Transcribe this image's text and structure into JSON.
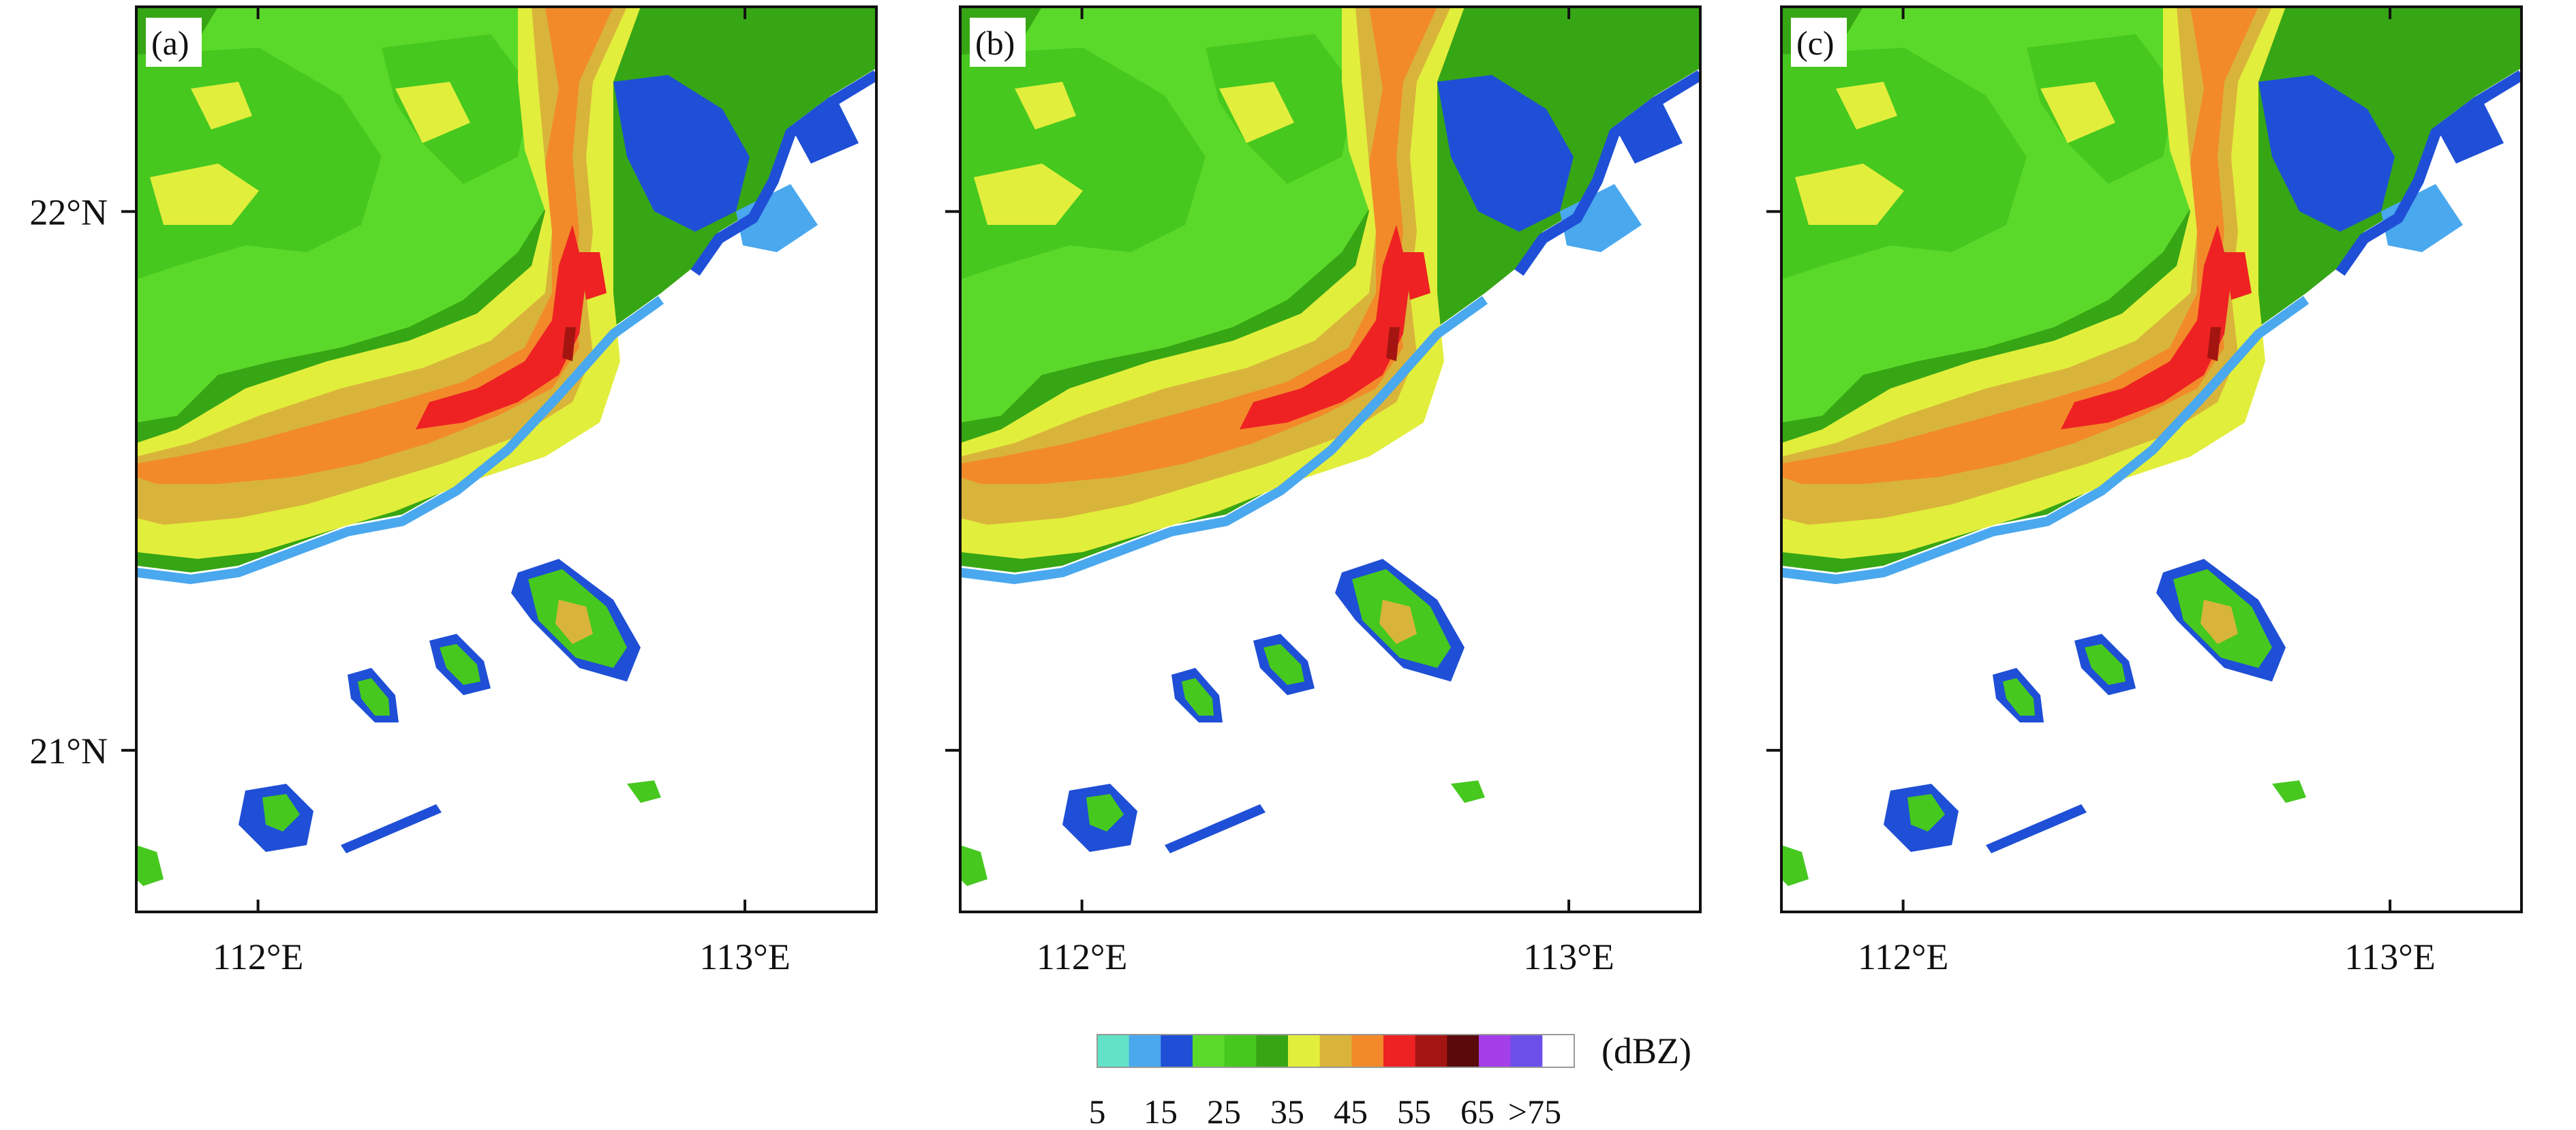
{
  "chart_data": {
    "type": "heatmap",
    "description_units": "radar reflectivity (dBZ)",
    "x_ticks": [
      {
        "value": 112,
        "label": "112°E"
      },
      {
        "value": 113,
        "label": "113°E"
      }
    ],
    "y_ticks": [
      {
        "value": 22,
        "label": "22°N"
      },
      {
        "value": 21,
        "label": "21°N"
      }
    ],
    "xlim": [
      111.75,
      113.27
    ],
    "ylim": [
      20.7,
      22.38
    ],
    "panels": [
      {
        "id": "a",
        "label": "(a)",
        "show_y_tick_labels": true
      },
      {
        "id": "b",
        "label": "(b)",
        "show_y_tick_labels": false
      },
      {
        "id": "c",
        "label": "(c)",
        "show_y_tick_labels": false
      }
    ],
    "colorbar": {
      "unit": "(dBZ)",
      "bins": [
        {
          "from": 5,
          "to": 10,
          "color": "#62e3c7"
        },
        {
          "from": 10,
          "to": 15,
          "color": "#4aa8ee"
        },
        {
          "from": 15,
          "to": 20,
          "color": "#1f4fd6"
        },
        {
          "from": 20,
          "to": 25,
          "color": "#5bd92a"
        },
        {
          "from": 25,
          "to": 30,
          "color": "#46c81f"
        },
        {
          "from": 30,
          "to": 35,
          "color": "#37a615"
        },
        {
          "from": 35,
          "to": 40,
          "color": "#e2ee3c"
        },
        {
          "from": 40,
          "to": 45,
          "color": "#d9b43a"
        },
        {
          "from": 45,
          "to": 50,
          "color": "#f28a2a"
        },
        {
          "from": 50,
          "to": 55,
          "color": "#ee2222"
        },
        {
          "from": 55,
          "to": 60,
          "color": "#a41512"
        },
        {
          "from": 60,
          "to": 65,
          "color": "#5a0a0a"
        },
        {
          "from": 65,
          "to": 70,
          "color": "#a43ee8"
        },
        {
          "from": 70,
          "to": 75,
          "color": "#6a50e8"
        },
        {
          "from": 75,
          "to": 80,
          "color": "#ffffff"
        }
      ],
      "tick_labels": [
        "5",
        "15",
        "25",
        "35",
        "45",
        "55",
        "65",
        ">75"
      ]
    }
  }
}
